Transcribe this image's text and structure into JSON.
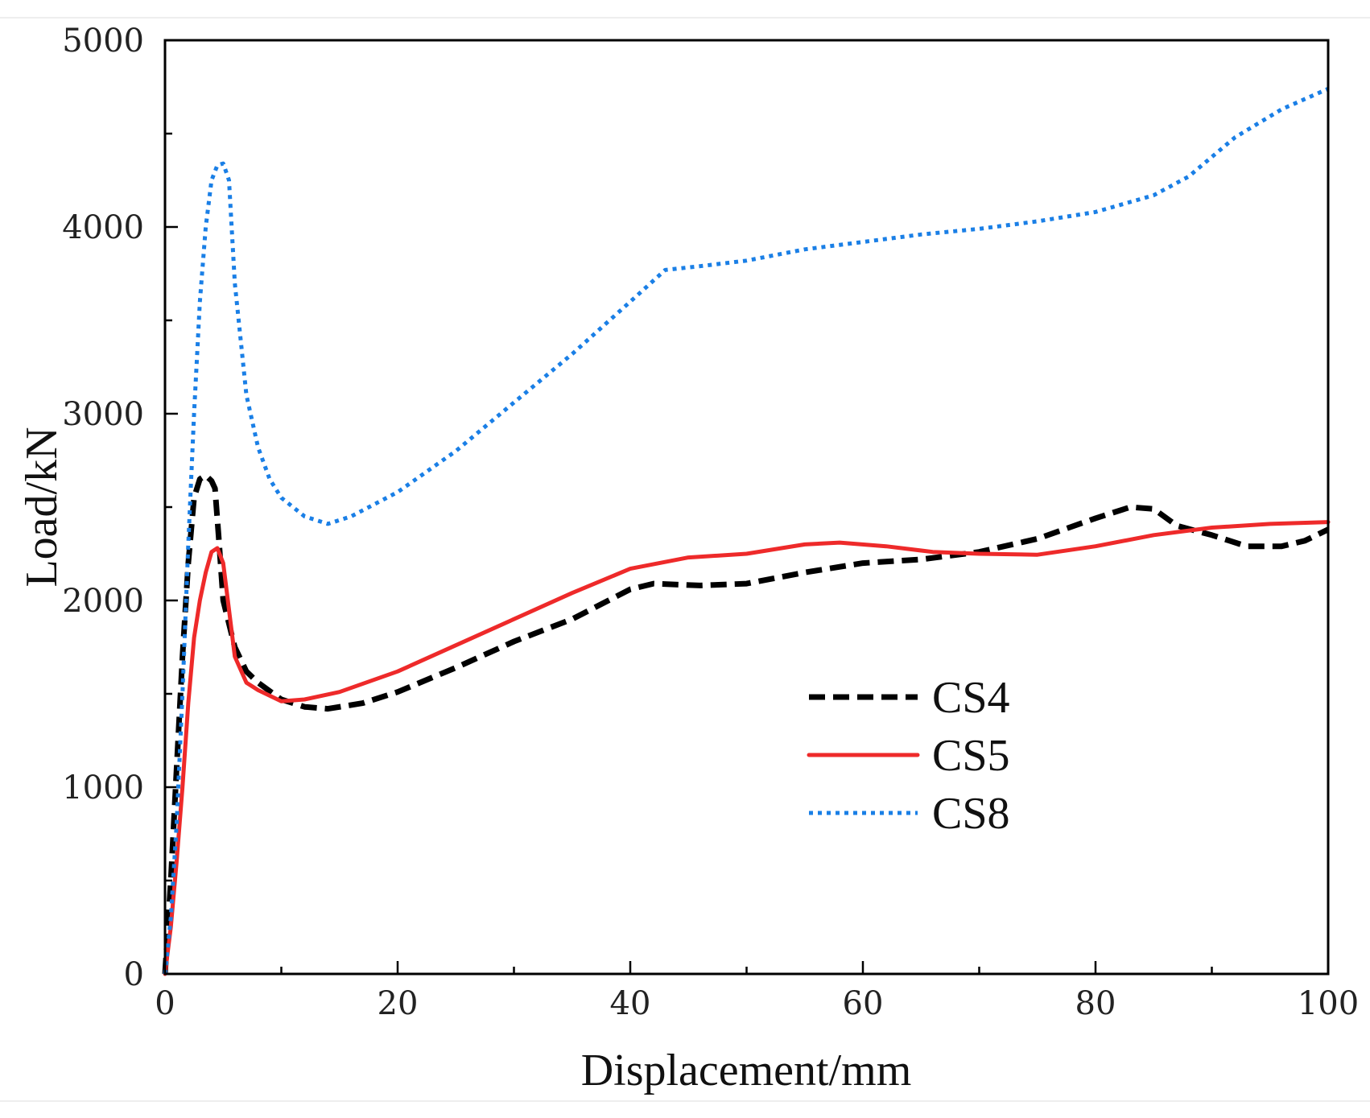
{
  "chart_data": {
    "type": "line",
    "title": "",
    "xlabel": "Displacement/mm",
    "ylabel": "Load/kN",
    "xlim": [
      0,
      100
    ],
    "ylim": [
      0,
      5000
    ],
    "xticks": [
      0,
      20,
      40,
      60,
      80,
      100
    ],
    "yticks": [
      0,
      1000,
      2000,
      3000,
      4000,
      5000
    ],
    "xtick_labels": [
      "0",
      "20",
      "40",
      "60",
      "80",
      "100"
    ],
    "ytick_labels": [
      "0",
      "1000",
      "2000",
      "3000",
      "4000",
      "5000"
    ],
    "grid": false,
    "legend_position": "center-right",
    "series": [
      {
        "name": "CS4",
        "color": "#000000",
        "style": "dashed",
        "points": [
          [
            0,
            0
          ],
          [
            0.5,
            500
          ],
          [
            1,
            1100
          ],
          [
            1.5,
            1700
          ],
          [
            2,
            2200
          ],
          [
            2.5,
            2550
          ],
          [
            3,
            2650
          ],
          [
            3.5,
            2670
          ],
          [
            4,
            2640
          ],
          [
            4.3,
            2600
          ],
          [
            4.6,
            2350
          ],
          [
            5,
            2000
          ],
          [
            6,
            1750
          ],
          [
            7,
            1620
          ],
          [
            8,
            1560
          ],
          [
            10,
            1470
          ],
          [
            12,
            1430
          ],
          [
            14,
            1420
          ],
          [
            17,
            1450
          ],
          [
            20,
            1510
          ],
          [
            25,
            1640
          ],
          [
            30,
            1780
          ],
          [
            35,
            1900
          ],
          [
            40,
            2060
          ],
          [
            42,
            2090
          ],
          [
            46,
            2080
          ],
          [
            50,
            2090
          ],
          [
            55,
            2150
          ],
          [
            60,
            2200
          ],
          [
            65,
            2220
          ],
          [
            70,
            2260
          ],
          [
            75,
            2330
          ],
          [
            80,
            2440
          ],
          [
            83,
            2500
          ],
          [
            85,
            2490
          ],
          [
            87,
            2400
          ],
          [
            90,
            2350
          ],
          [
            93,
            2290
          ],
          [
            96,
            2290
          ],
          [
            98,
            2320
          ],
          [
            100,
            2380
          ]
        ]
      },
      {
        "name": "CS5",
        "color": "#ee2a2a",
        "style": "solid",
        "points": [
          [
            0,
            0
          ],
          [
            0.5,
            250
          ],
          [
            1,
            600
          ],
          [
            1.5,
            1000
          ],
          [
            2,
            1450
          ],
          [
            2.5,
            1800
          ],
          [
            3,
            2000
          ],
          [
            3.5,
            2150
          ],
          [
            4,
            2260
          ],
          [
            4.5,
            2280
          ],
          [
            5,
            2200
          ],
          [
            5.5,
            1950
          ],
          [
            6,
            1700
          ],
          [
            7,
            1560
          ],
          [
            8,
            1520
          ],
          [
            10,
            1460
          ],
          [
            12,
            1470
          ],
          [
            15,
            1510
          ],
          [
            20,
            1620
          ],
          [
            25,
            1760
          ],
          [
            30,
            1900
          ],
          [
            35,
            2040
          ],
          [
            40,
            2170
          ],
          [
            45,
            2230
          ],
          [
            50,
            2250
          ],
          [
            55,
            2300
          ],
          [
            58,
            2310
          ],
          [
            62,
            2290
          ],
          [
            66,
            2260
          ],
          [
            70,
            2250
          ],
          [
            75,
            2245
          ],
          [
            80,
            2290
          ],
          [
            85,
            2350
          ],
          [
            90,
            2390
          ],
          [
            95,
            2410
          ],
          [
            100,
            2420
          ]
        ]
      },
      {
        "name": "CS8",
        "color": "#1a7fe6",
        "style": "dotted",
        "points": [
          [
            0,
            0
          ],
          [
            0.5,
            300
          ],
          [
            1,
            800
          ],
          [
            1.5,
            1500
          ],
          [
            2,
            2300
          ],
          [
            2.5,
            3000
          ],
          [
            3,
            3600
          ],
          [
            3.5,
            4000
          ],
          [
            4,
            4250
          ],
          [
            4.5,
            4330
          ],
          [
            5,
            4340
          ],
          [
            5.5,
            4250
          ],
          [
            6,
            3700
          ],
          [
            7,
            3100
          ],
          [
            8,
            2820
          ],
          [
            9,
            2650
          ],
          [
            10,
            2550
          ],
          [
            12,
            2450
          ],
          [
            14,
            2410
          ],
          [
            16,
            2450
          ],
          [
            20,
            2580
          ],
          [
            25,
            2800
          ],
          [
            30,
            3060
          ],
          [
            35,
            3320
          ],
          [
            40,
            3600
          ],
          [
            43,
            3770
          ],
          [
            46,
            3790
          ],
          [
            50,
            3820
          ],
          [
            55,
            3880
          ],
          [
            60,
            3920
          ],
          [
            65,
            3960
          ],
          [
            70,
            3990
          ],
          [
            75,
            4030
          ],
          [
            80,
            4080
          ],
          [
            85,
            4170
          ],
          [
            88,
            4270
          ],
          [
            92,
            4480
          ],
          [
            96,
            4630
          ],
          [
            100,
            4740
          ]
        ]
      }
    ]
  }
}
